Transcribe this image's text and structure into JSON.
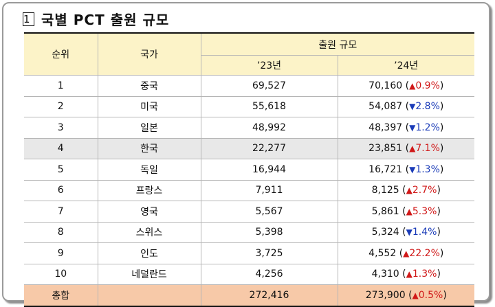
{
  "title": {
    "marker": "1",
    "text": "국별 PCT 출원 규모"
  },
  "table": {
    "headers": {
      "rank": "순위",
      "country": "국가",
      "group": "출원 규모",
      "y23": "’23년",
      "y24": "’24년"
    },
    "rows": [
      {
        "rank": "1",
        "country": "중국",
        "y23": "69,527",
        "y24": "70,160",
        "dir": "up",
        "change": "0.9%"
      },
      {
        "rank": "2",
        "country": "미국",
        "y23": "55,618",
        "y24": "54,087",
        "dir": "down",
        "change": "2.8%"
      },
      {
        "rank": "3",
        "country": "일본",
        "y23": "48,992",
        "y24": "48,397",
        "dir": "down",
        "change": "1.2%"
      },
      {
        "rank": "4",
        "country": "한국",
        "y23": "22,277",
        "y24": "23,851",
        "dir": "up",
        "change": "7.1%"
      },
      {
        "rank": "5",
        "country": "독일",
        "y23": "16,944",
        "y24": "16,721",
        "dir": "down",
        "change": "1.3%"
      },
      {
        "rank": "6",
        "country": "프랑스",
        "y23": "7,911",
        "y24": "8,125",
        "dir": "up",
        "change": "2.7%"
      },
      {
        "rank": "7",
        "country": "영국",
        "y23": "5,567",
        "y24": "5,861",
        "dir": "up",
        "change": "5.3%"
      },
      {
        "rank": "8",
        "country": "스위스",
        "y23": "5,398",
        "y24": "5,324",
        "dir": "down",
        "change": "1.4%"
      },
      {
        "rank": "9",
        "country": "인도",
        "y23": "3,725",
        "y24": "4,552",
        "dir": "up",
        "change": "22.2%"
      },
      {
        "rank": "10",
        "country": "네덜란드",
        "y23": "4,256",
        "y24": "4,310",
        "dir": "up",
        "change": "1.3%"
      }
    ],
    "total": {
      "label": "총합",
      "y23": "272,416",
      "y24": "273,900",
      "dir": "up",
      "change": "0.5%"
    }
  },
  "colors": {
    "header_bg": "#fcf3c8",
    "highlight_row_bg": "#e8e8e8",
    "total_row_bg": "#f7c9a8",
    "up": "#d01818",
    "down": "#1a3bb8"
  }
}
